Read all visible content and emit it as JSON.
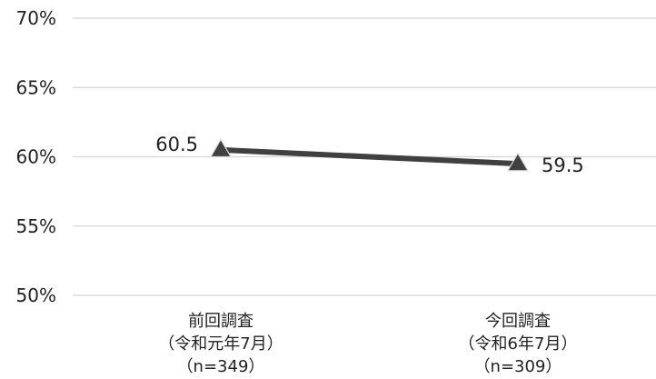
{
  "chart_data": {
    "type": "line",
    "title": "",
    "xlabel": "",
    "ylabel": "",
    "categories": [
      [
        "前回調査",
        "（令和元年7月）",
        "（n=349）"
      ],
      [
        "今回調査",
        "（令和6年7月）",
        "（n=309）"
      ]
    ],
    "series": [
      {
        "values": [
          60.5,
          59.5
        ],
        "data_labels": [
          "60.5",
          "59.5"
        ],
        "color": "#404040",
        "marker": "triangle"
      }
    ],
    "ylim": [
      50,
      70
    ],
    "yticks": [
      50,
      55,
      60,
      65,
      70
    ],
    "ytick_labels": [
      "50%",
      "55%",
      "60%",
      "65%",
      "70%"
    ],
    "grid": true,
    "legend": "none"
  }
}
